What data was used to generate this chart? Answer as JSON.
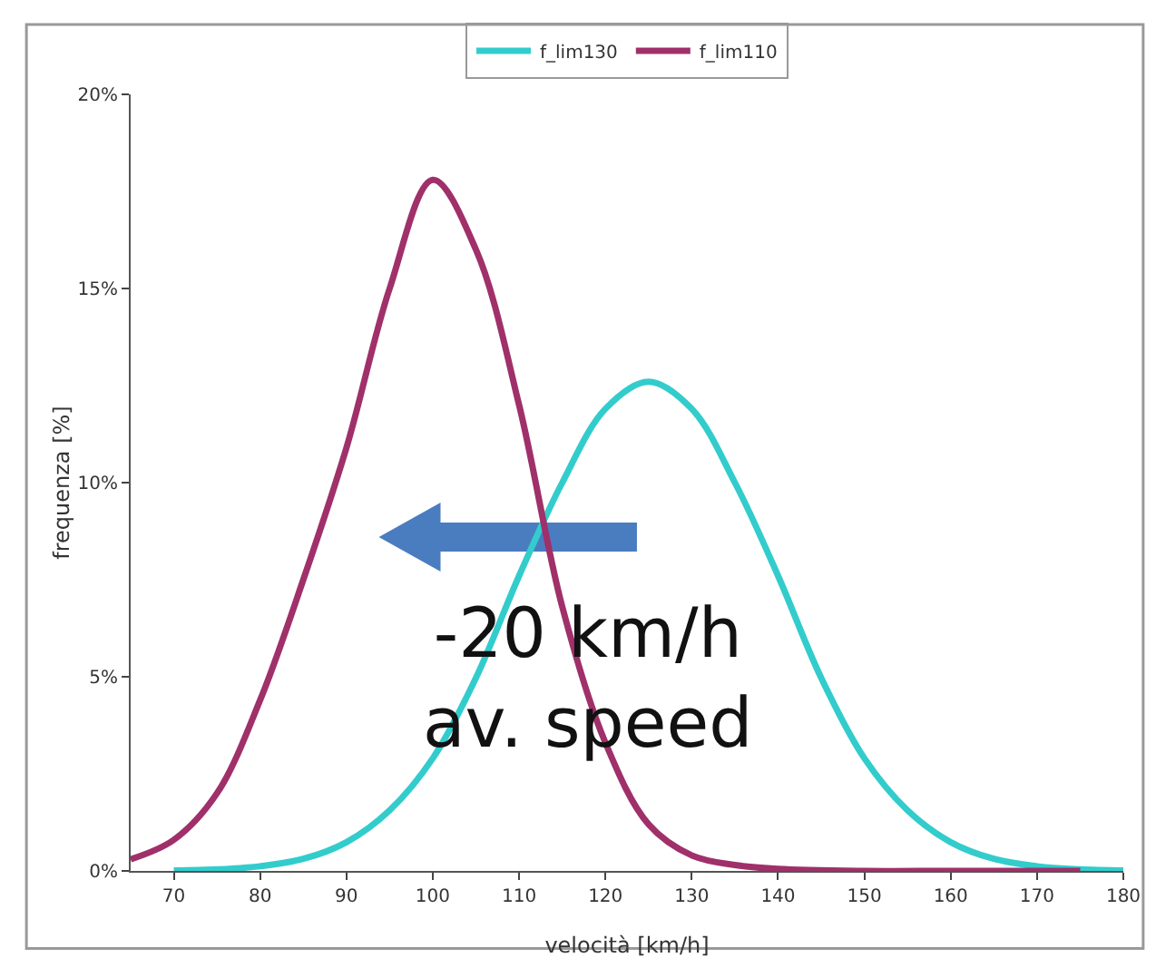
{
  "chart_data": {
    "type": "line",
    "xlabel": "velocità [km/h]",
    "ylabel": "frequenza [%]",
    "xlim": [
      65,
      180
    ],
    "xticks": [
      70,
      80,
      90,
      100,
      110,
      120,
      130,
      140,
      150,
      160,
      170,
      180
    ],
    "ylim": [
      0,
      20
    ],
    "yticks": [
      {
        "value": 0,
        "label": "0%"
      },
      {
        "value": 5,
        "label": "5%"
      },
      {
        "value": 10,
        "label": "10%"
      },
      {
        "value": 15,
        "label": "15%"
      },
      {
        "value": 20,
        "label": "20%"
      }
    ],
    "grid": false,
    "legend": "top",
    "marker": "none",
    "line_style": "solid",
    "series": [
      {
        "name": "f_lim130",
        "color": "#33cccc",
        "x": [
          70,
          75,
          80,
          85,
          90,
          95,
          100,
          105,
          110,
          115,
          120,
          125,
          130,
          135,
          140,
          145,
          150,
          155,
          160,
          165,
          170,
          175,
          180
        ],
        "values": [
          0.01,
          0.04,
          0.12,
          0.31,
          0.74,
          1.56,
          2.9,
          4.97,
          7.6,
          10,
          11.9,
          12.6,
          11.9,
          10,
          7.6,
          4.97,
          2.9,
          1.56,
          0.74,
          0.31,
          0.12,
          0.04,
          0.01
        ]
      },
      {
        "name": "f_lim110",
        "color": "#a0306a",
        "x": [
          65,
          70,
          75,
          80,
          85,
          90,
          95,
          100,
          105,
          110,
          115,
          120,
          125,
          130,
          135,
          140,
          150,
          160,
          175
        ],
        "values": [
          0.3,
          0.8,
          2,
          4.4,
          7.5,
          10.9,
          15,
          17.8,
          16,
          12,
          6.8,
          3.3,
          1.2,
          0.4,
          0.15,
          0.05,
          0,
          0,
          0
        ]
      }
    ],
    "annotations": [
      {
        "text": "-20 km/h\nav. speed",
        "x": 118,
        "y": 5
      }
    ]
  }
}
